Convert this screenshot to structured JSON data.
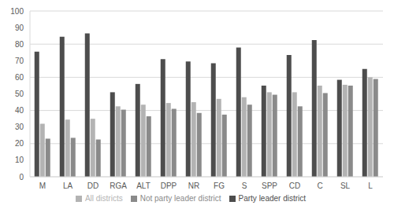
{
  "chart_data": {
    "type": "bar",
    "categories": [
      "M",
      "LA",
      "DD",
      "RGA",
      "ALT",
      "DPP",
      "NR",
      "FG",
      "S",
      "SPP",
      "CD",
      "C",
      "SL",
      "L"
    ],
    "series": [
      {
        "name": "Party leader district",
        "color": "#4d4d4d",
        "values": [
          75.5,
          84.5,
          86.5,
          51,
          56,
          71,
          69.5,
          68.5,
          78,
          55,
          73.5,
          82.5,
          58.5,
          65
        ]
      },
      {
        "name": "All districts",
        "color": "#b3b3b3",
        "values": [
          32,
          34.5,
          35,
          42.5,
          43.5,
          44.5,
          45,
          47,
          48,
          51,
          51,
          55,
          55.5,
          60
        ]
      },
      {
        "name": "Not party leader district",
        "color": "#8a8a8a",
        "values": [
          23,
          23.5,
          22.5,
          40.5,
          36.5,
          41,
          38.5,
          37.5,
          43.5,
          49.5,
          42.5,
          50.5,
          55,
          59
        ]
      }
    ],
    "ylim": [
      0,
      100
    ],
    "yticks": [
      0,
      10,
      20,
      30,
      40,
      50,
      60,
      70,
      80,
      90,
      100
    ],
    "grid": true,
    "legend": "bottom"
  }
}
